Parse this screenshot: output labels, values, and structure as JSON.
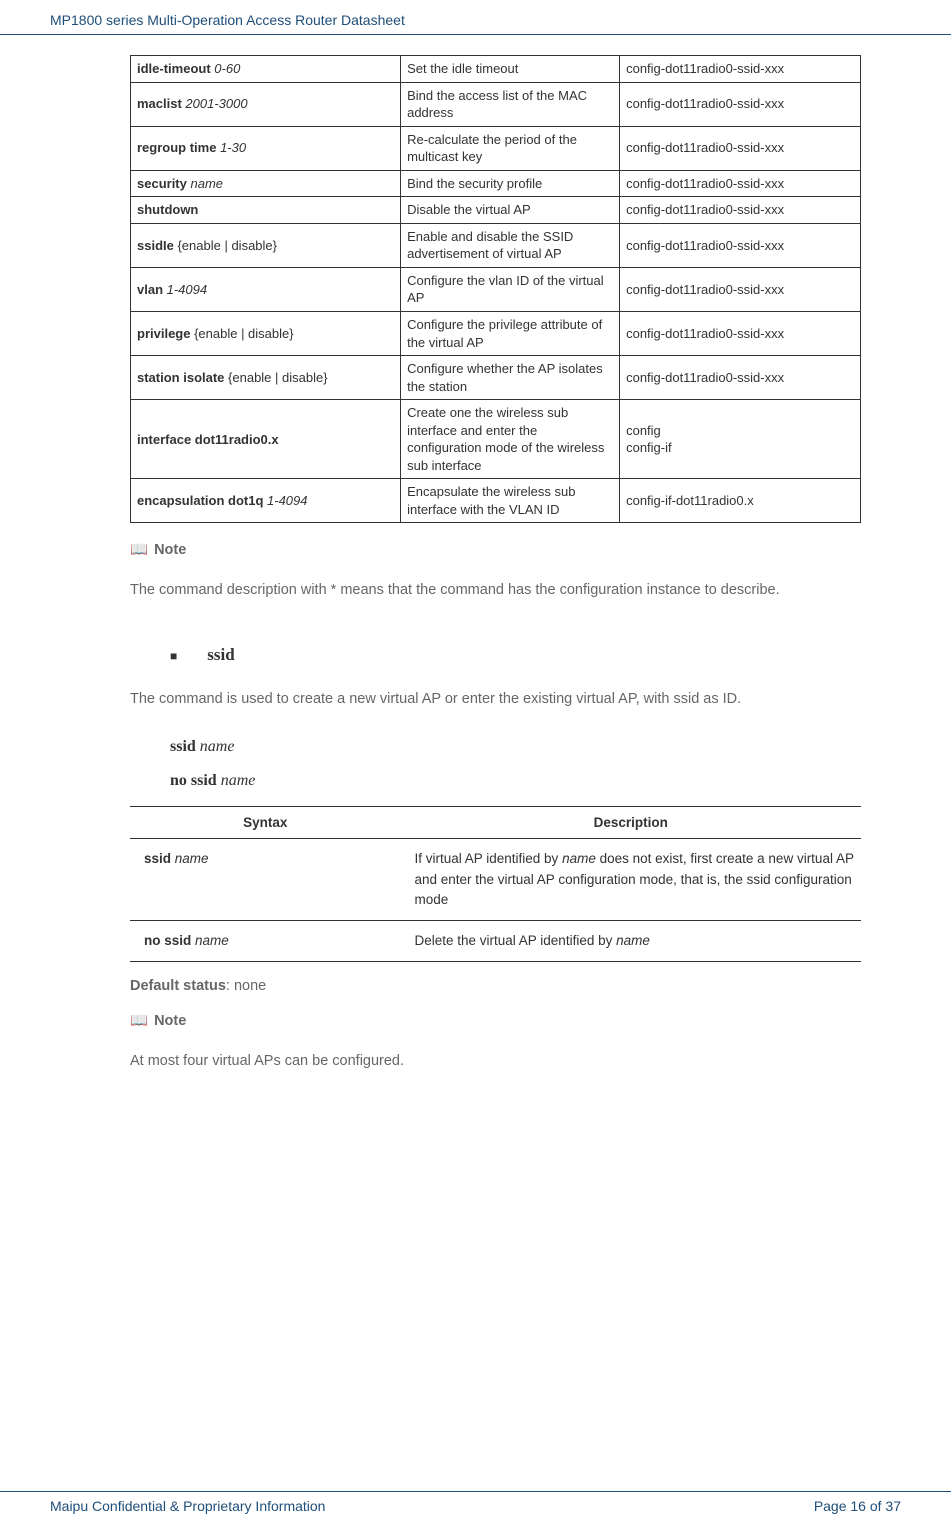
{
  "header": {
    "title": "MP1800 series Multi-Operation Access Router Datasheet"
  },
  "cmd_table": {
    "rows": [
      {
        "cmd_bold": "idle-timeout ",
        "cmd_italic": "0-60",
        "desc": "Set the idle timeout",
        "mode": "config-dot11radio0-ssid-xxx"
      },
      {
        "cmd_bold": "maclist ",
        "cmd_italic": "2001-3000",
        "desc": "Bind the access list of the MAC address",
        "mode": "config-dot11radio0-ssid-xxx"
      },
      {
        "cmd_bold": "regroup time ",
        "cmd_italic": "1-30",
        "desc": "Re-calculate the period of the multicast key",
        "mode": "config-dot11radio0-ssid-xxx"
      },
      {
        "cmd_bold": "security ",
        "cmd_italic": "name",
        "desc": "Bind the security profile",
        "mode": "config-dot11radio0-ssid-xxx"
      },
      {
        "cmd_bold": "shutdown",
        "cmd_italic": "",
        "desc": "Disable the virtual AP",
        "mode": "config-dot11radio0-ssid-xxx"
      },
      {
        "cmd_bold": "ssidIe ",
        "cmd_plain": "{enable | disable}",
        "desc": "Enable and disable the SSID advertisement of virtual AP",
        "mode": "config-dot11radio0-ssid-xxx"
      },
      {
        "cmd_bold": "vlan ",
        "cmd_italic": "1-4094",
        "desc": "Configure the vlan ID of the virtual AP",
        "mode": "config-dot11radio0-ssid-xxx"
      },
      {
        "cmd_bold": "privilege ",
        "cmd_plain": "{enable | disable}",
        "desc": "Configure the privilege attribute of the virtual AP",
        "mode": "config-dot11radio0-ssid-xxx"
      },
      {
        "cmd_bold": "station isolate ",
        "cmd_plain": "{enable | disable}",
        "desc": "Configure whether the AP isolates the station",
        "mode": "config-dot11radio0-ssid-xxx"
      },
      {
        "cmd_bold": "interface dot11radio0.x",
        "cmd_italic": "",
        "desc": "Create one the wireless sub interface and enter the configuration mode of the wireless sub interface",
        "mode": "config\nconfig-if"
      },
      {
        "cmd_bold": "encapsulation dot1q ",
        "cmd_italic": "1-4094",
        "desc": "Encapsulate the wireless sub interface with the VLAN ID",
        "mode": "config-if-dot11radio0.x"
      }
    ]
  },
  "note1": {
    "icon": "📖",
    "label": "Note",
    "text": "The command description with * means that the command has the configuration instance to describe."
  },
  "ssid_section": {
    "bullet": "■",
    "name": "ssid",
    "para": "The command is used to create a new virtual AP or enter the existing virtual AP, with ssid as ID.",
    "syntax1_kw": "ssid",
    "syntax1_arg": "name",
    "syntax2_kw": "no ssid",
    "syntax2_arg": "name"
  },
  "syntax_table": {
    "headers": {
      "col1": "Syntax",
      "col2": "Description"
    },
    "rows": [
      {
        "syntax_bold": "ssid ",
        "syntax_italic": "name",
        "desc_pre": "If virtual AP identified by ",
        "desc_ital": "name",
        "desc_post": " does not exist, first create a new virtual AP and enter the virtual AP configuration mode, that is, the ssid configuration mode"
      },
      {
        "syntax_bold": "no ssid ",
        "syntax_italic": "name",
        "desc_pre": "Delete the virtual AP identified by ",
        "desc_ital": "name",
        "desc_post": ""
      }
    ]
  },
  "default_status": {
    "label": "Default status",
    "value": ": none"
  },
  "note2": {
    "icon": "📖",
    "label": "Note",
    "text": "At most four virtual APs can be configured."
  },
  "footer": {
    "left": "Maipu Confidential & Proprietary Information",
    "right": "Page 16 of 37"
  }
}
